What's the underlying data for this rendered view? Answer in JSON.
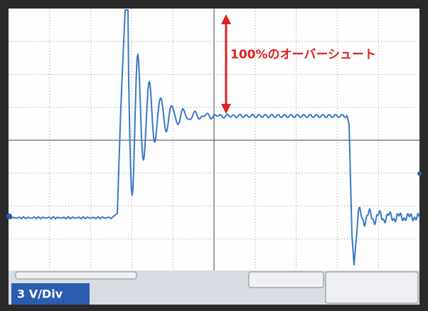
{
  "annotation": "100%のオーバーシュート",
  "scale_label": "3 V/Div"
}
